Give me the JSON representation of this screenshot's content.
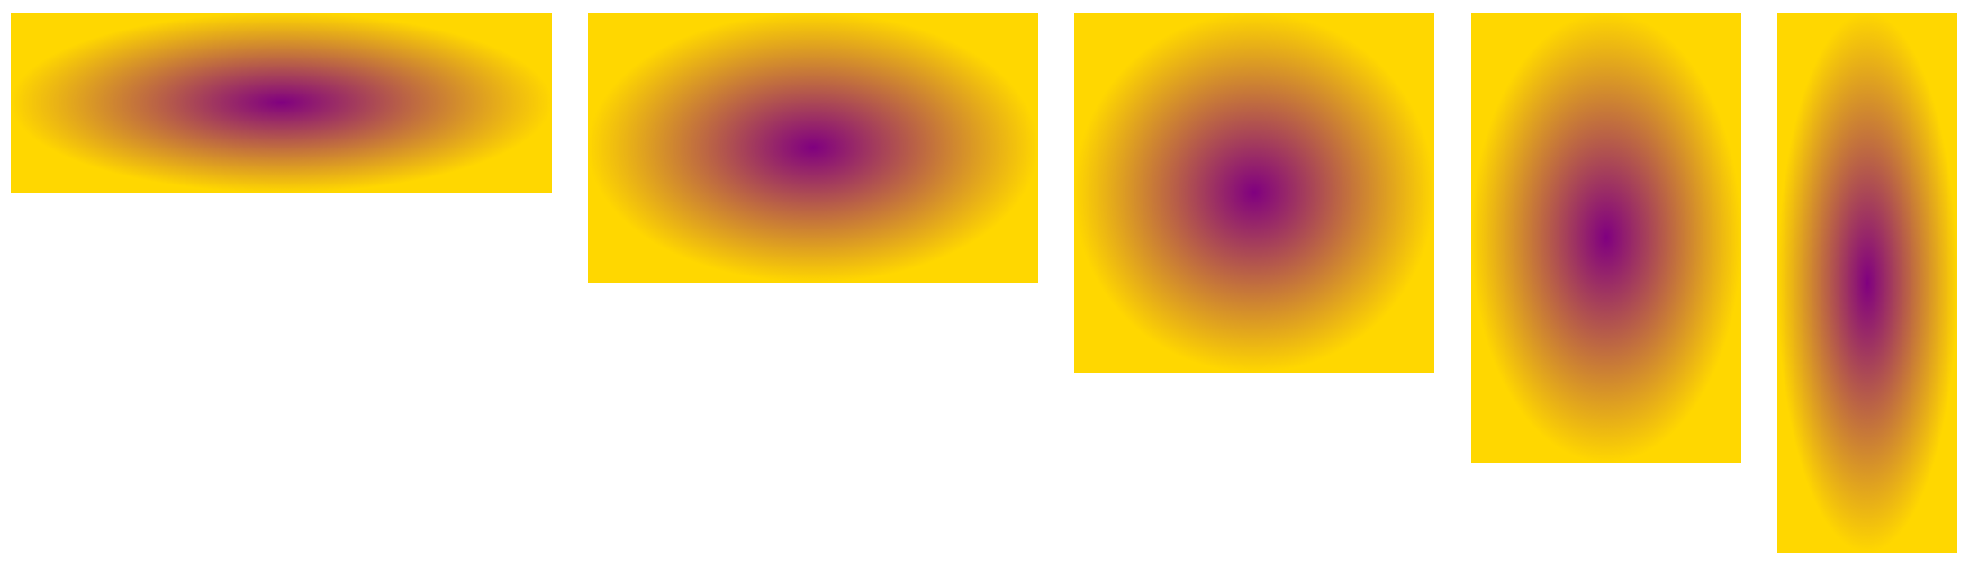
{
  "colors": {
    "center": "#800080",
    "edge": "#ffd700",
    "background": "#ffffff"
  },
  "panels": [
    {
      "shape": "ellipse",
      "gradient": "radial"
    },
    {
      "shape": "ellipse",
      "gradient": "radial"
    },
    {
      "shape": "ellipse",
      "gradient": "radial"
    },
    {
      "shape": "ellipse",
      "gradient": "radial"
    },
    {
      "shape": "ellipse",
      "gradient": "radial"
    }
  ]
}
